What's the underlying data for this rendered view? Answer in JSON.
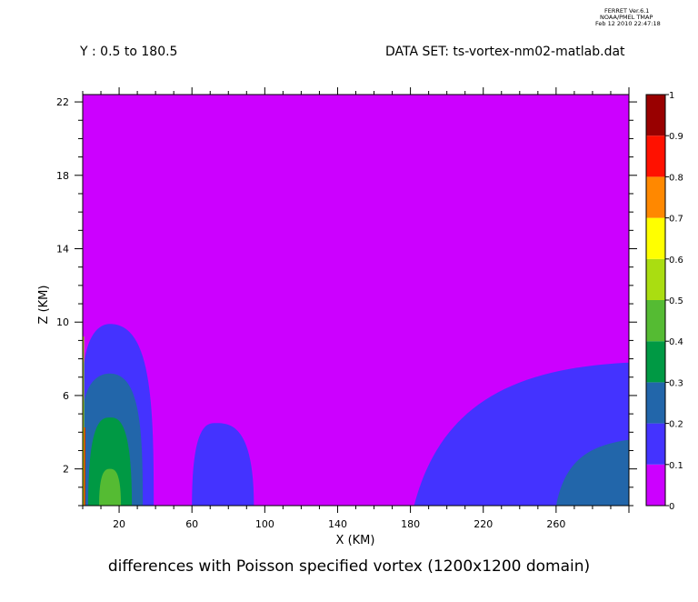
{
  "header": {
    "ferret_line1": "FERRET Ver.6.1",
    "ferret_line2": "NOAA/PMEL TMAP",
    "ferret_line3": "Feb 12 2010 22:47:18",
    "y_range": "Y : 0.5 to 180.5",
    "dataset": "DATA SET: ts-vortex-nm02-matlab.dat"
  },
  "chart_data": {
    "type": "contour",
    "title": "differences with Poisson specified vortex (1200x1200 domain)",
    "xlabel": "X (KM)",
    "ylabel": "Z (KM)",
    "xlim": [
      0,
      300
    ],
    "ylim": [
      0,
      22.4
    ],
    "x_ticks": [
      20,
      60,
      100,
      140,
      180,
      220,
      260
    ],
    "x_tick_labels": [
      "20",
      "60",
      "100",
      "140",
      "180",
      "220",
      "260"
    ],
    "y_ticks": [
      2,
      6,
      10,
      14,
      18,
      22
    ],
    "y_tick_labels": [
      "2",
      "6",
      "10",
      "14",
      "18",
      "22"
    ],
    "levels": [
      0,
      0.1,
      0.2,
      0.3,
      0.4,
      0.5,
      0.6,
      0.7,
      0.8,
      0.9,
      1
    ],
    "level_labels": [
      "0",
      "0.1",
      "0.2",
      "0.3",
      "0.4",
      "0.5",
      "0.6",
      "0.7",
      "0.8",
      "0.9",
      "1"
    ],
    "colors": [
      "#cc00ff",
      "#4433ff",
      "#2266aa",
      "#009944",
      "#55bb33",
      "#aadd11",
      "#ffff00",
      "#ff8800",
      "#ff1100",
      "#990000"
    ],
    "regions": [
      {
        "name": "left-vortex-0.1",
        "level": 0.1,
        "shape": "quarter-ellipse",
        "cx": 15,
        "x_left": 0,
        "x_right": 39,
        "z_top": 9.9
      },
      {
        "name": "left-vortex-0.2",
        "level": 0.2,
        "shape": "quarter-ellipse",
        "cx": 15,
        "x_left": 0,
        "x_right": 33,
        "z_top": 7.2
      },
      {
        "name": "left-vortex-0.3",
        "level": 0.3,
        "shape": "half-ellipse",
        "cx": 15,
        "x_left": 3,
        "x_right": 27,
        "z_top": 4.8
      },
      {
        "name": "left-vortex-0.4",
        "level": 0.4,
        "shape": "half-ellipse",
        "cx": 15,
        "x_left": 9,
        "x_right": 21,
        "z_top": 2.0
      },
      {
        "name": "middle-lobe-0.1",
        "level": 0.1,
        "shape": "half-ellipse",
        "cx": 73,
        "x_left": 60,
        "x_right": 94,
        "z_top": 4.5
      },
      {
        "name": "right-region-0.1",
        "level": 0.1,
        "shape": "rising-edge",
        "x_left": 182,
        "x_right": 300,
        "z_top": 7.8
      },
      {
        "name": "right-region-0.2",
        "level": 0.2,
        "shape": "rising-edge",
        "x_left": 260,
        "x_right": 300,
        "z_top": 3.6
      }
    ]
  }
}
